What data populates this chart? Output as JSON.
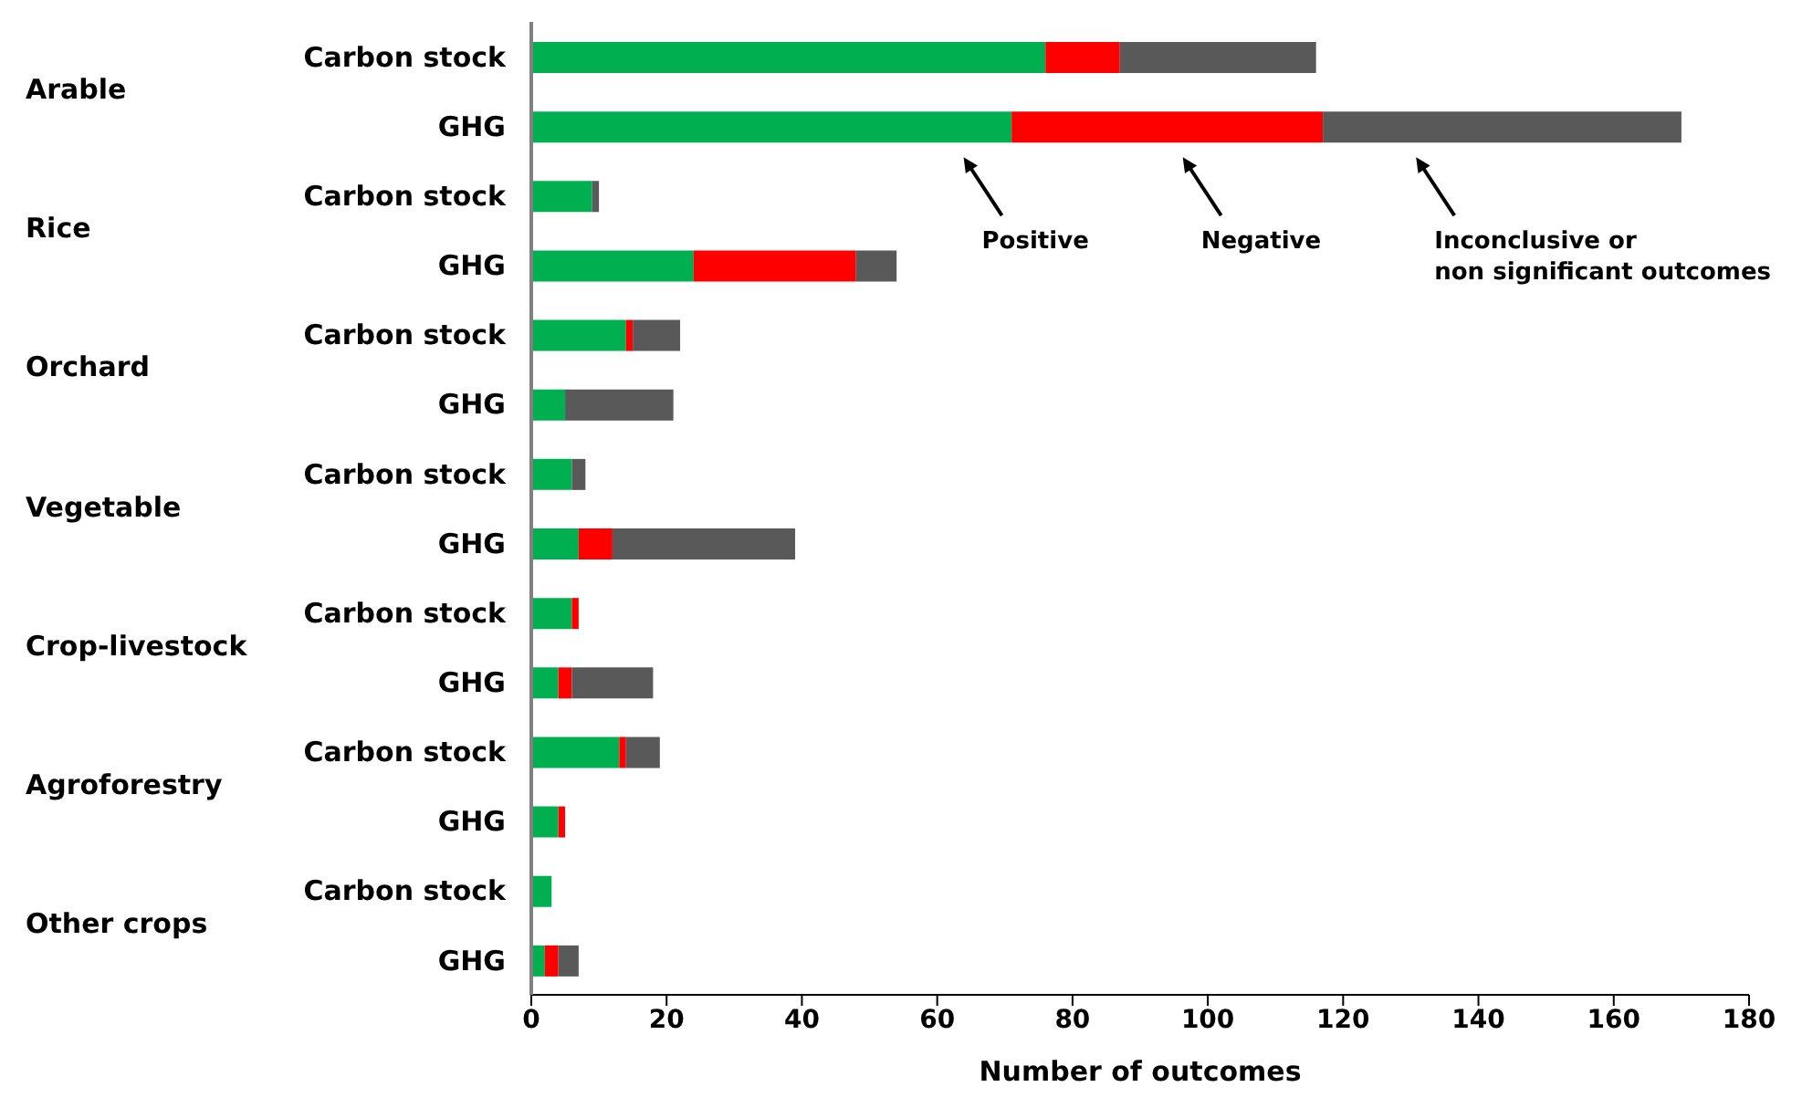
{
  "chart_data": {
    "type": "bar",
    "orientation": "horizontal",
    "stacked": true,
    "xlabel": "Number of outcomes",
    "categories": [
      "Carbon stock",
      "GHG",
      "Carbon stock",
      "GHG",
      "Carbon stock",
      "GHG",
      "Carbon stock",
      "GHG",
      "Carbon stock",
      "GHG",
      "Carbon stock",
      "GHG",
      "Carbon stock",
      "GHG"
    ],
    "annotations": [
      "Arable",
      "Rice",
      "Orchard",
      "Vegetable",
      "Crop-livestock",
      "Agroforestry",
      "Other crops"
    ],
    "series": [
      {
        "name": "Positive",
        "color": "#00b050",
        "values": [
          76,
          71,
          9,
          24,
          14,
          5,
          6,
          7,
          6,
          4,
          13,
          4,
          3,
          2
        ]
      },
      {
        "name": "Negative",
        "color": "#ff0000",
        "values": [
          11,
          46,
          0,
          24,
          1,
          0,
          0,
          5,
          1,
          2,
          1,
          1,
          0,
          2
        ]
      },
      {
        "name": "Inconclusive or\nnon significant outcomes",
        "color": "#595959",
        "values": [
          29,
          53,
          1,
          6,
          7,
          16,
          2,
          27,
          0,
          12,
          5,
          0,
          0,
          3
        ]
      }
    ],
    "xlim": [
      0,
      180
    ],
    "xticks": [
      0,
      20,
      40,
      60,
      80,
      100,
      120,
      140,
      160,
      180
    ],
    "grid": false,
    "legend": "top right"
  }
}
